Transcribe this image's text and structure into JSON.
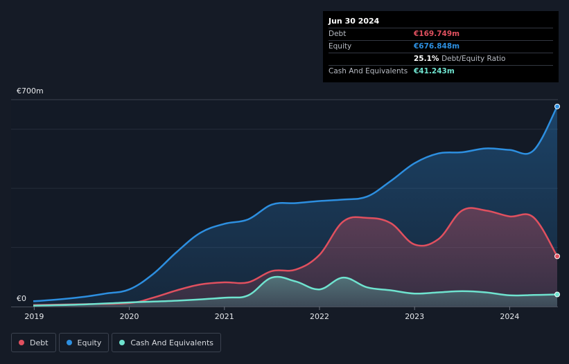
{
  "chart_data": {
    "type": "area",
    "ylabel_top": "€700m",
    "ylabel_bottom": "€0",
    "ylim": [
      0,
      700
    ],
    "x_ticks": [
      "2019",
      "2020",
      "2021",
      "2022",
      "2023",
      "2024"
    ],
    "x_tick_values": [
      2019,
      2020,
      2021,
      2022,
      2023,
      2024
    ],
    "xlim": [
      2018.99,
      2024.5
    ],
    "series": [
      {
        "name": "Equity",
        "color": "#2d8fe0",
        "points": [
          [
            2018.99,
            18
          ],
          [
            2019.25,
            24
          ],
          [
            2019.5,
            32
          ],
          [
            2019.75,
            44
          ],
          [
            2020.0,
            58
          ],
          [
            2020.25,
            110
          ],
          [
            2020.5,
            185
          ],
          [
            2020.75,
            250
          ],
          [
            2021.0,
            280
          ],
          [
            2021.25,
            295
          ],
          [
            2021.5,
            345
          ],
          [
            2021.75,
            350
          ],
          [
            2022.0,
            357
          ],
          [
            2022.25,
            362
          ],
          [
            2022.5,
            372
          ],
          [
            2022.75,
            425
          ],
          [
            2023.0,
            485
          ],
          [
            2023.25,
            518
          ],
          [
            2023.5,
            522
          ],
          [
            2023.75,
            535
          ],
          [
            2024.0,
            530
          ],
          [
            2024.25,
            528
          ],
          [
            2024.5,
            677
          ]
        ]
      },
      {
        "name": "Debt",
        "color": "#e0505f",
        "points": [
          [
            2018.99,
            5
          ],
          [
            2019.5,
            8
          ],
          [
            2020.0,
            12
          ],
          [
            2020.25,
            30
          ],
          [
            2020.5,
            55
          ],
          [
            2020.75,
            75
          ],
          [
            2021.0,
            82
          ],
          [
            2021.25,
            82
          ],
          [
            2021.5,
            120
          ],
          [
            2021.75,
            125
          ],
          [
            2022.0,
            175
          ],
          [
            2022.25,
            288
          ],
          [
            2022.5,
            300
          ],
          [
            2022.75,
            282
          ],
          [
            2023.0,
            210
          ],
          [
            2023.25,
            228
          ],
          [
            2023.5,
            325
          ],
          [
            2023.75,
            325
          ],
          [
            2024.0,
            305
          ],
          [
            2024.25,
            302
          ],
          [
            2024.5,
            170
          ]
        ]
      },
      {
        "name": "Cash And Equivalents",
        "color": "#6fe3cf",
        "points": [
          [
            2018.99,
            3
          ],
          [
            2019.5,
            7
          ],
          [
            2020.0,
            14
          ],
          [
            2020.5,
            20
          ],
          [
            2021.0,
            30
          ],
          [
            2021.25,
            38
          ],
          [
            2021.5,
            98
          ],
          [
            2021.75,
            85
          ],
          [
            2022.0,
            58
          ],
          [
            2022.25,
            98
          ],
          [
            2022.5,
            65
          ],
          [
            2022.75,
            55
          ],
          [
            2023.0,
            44
          ],
          [
            2023.25,
            48
          ],
          [
            2023.5,
            52
          ],
          [
            2023.75,
            48
          ],
          [
            2024.0,
            38
          ],
          [
            2024.25,
            39
          ],
          [
            2024.5,
            41
          ]
        ]
      }
    ]
  },
  "tooltip": {
    "date": "Jun 30 2024",
    "debt_label": "Debt",
    "debt_value": "€169.749m",
    "equity_label": "Equity",
    "equity_value": "€676.848m",
    "ratio_value": "25.1%",
    "ratio_label": "Debt/Equity Ratio",
    "cash_label": "Cash And Equivalents",
    "cash_value": "€41.243m"
  },
  "legend": {
    "debt": "Debt",
    "equity": "Equity",
    "cash": "Cash And Equivalents"
  },
  "colors": {
    "debt": "#e0505f",
    "equity": "#2d8fe0",
    "cash": "#6fe3cf",
    "background": "#151b26"
  }
}
